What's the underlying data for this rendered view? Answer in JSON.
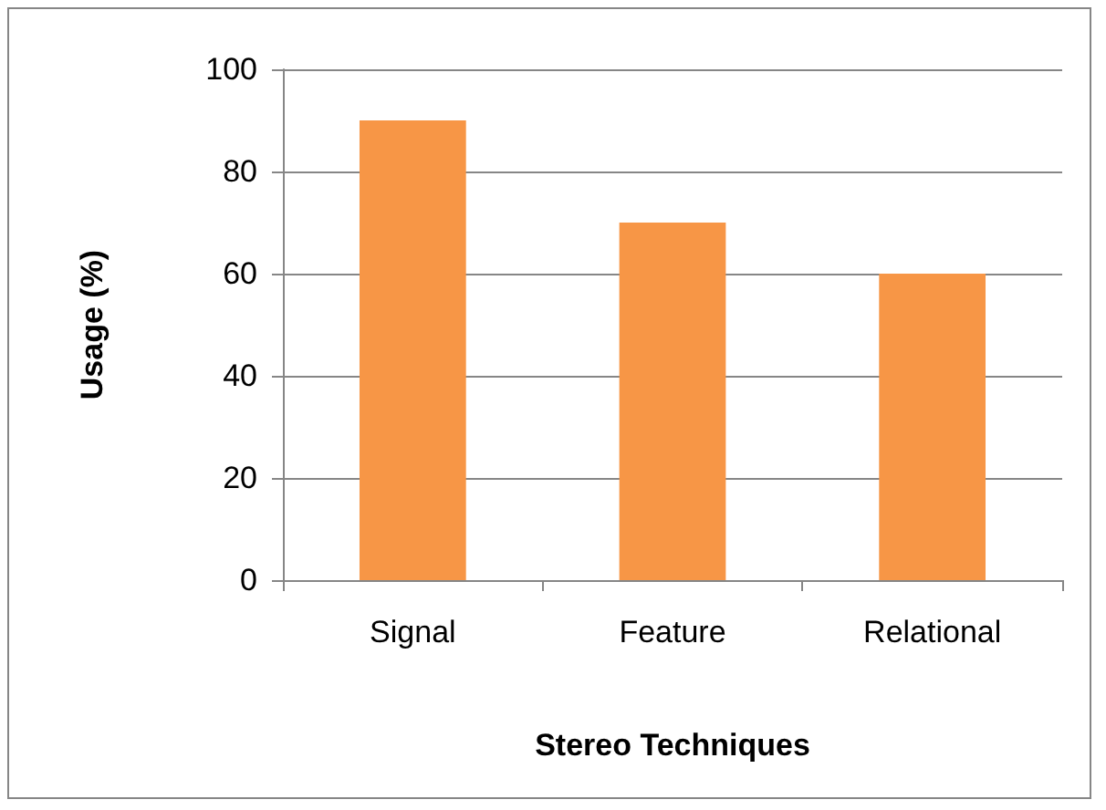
{
  "chart_data": {
    "type": "bar",
    "xlabel": "Stereo Techniques",
    "ylabel": "Usage (%)",
    "categories": [
      "Signal",
      "Feature",
      "Relational"
    ],
    "values": [
      90,
      70,
      60
    ],
    "color": "#f79646",
    "ylim": [
      0,
      100
    ],
    "yticks": [
      0,
      20,
      40,
      60,
      80,
      100
    ],
    "grid": "y"
  }
}
